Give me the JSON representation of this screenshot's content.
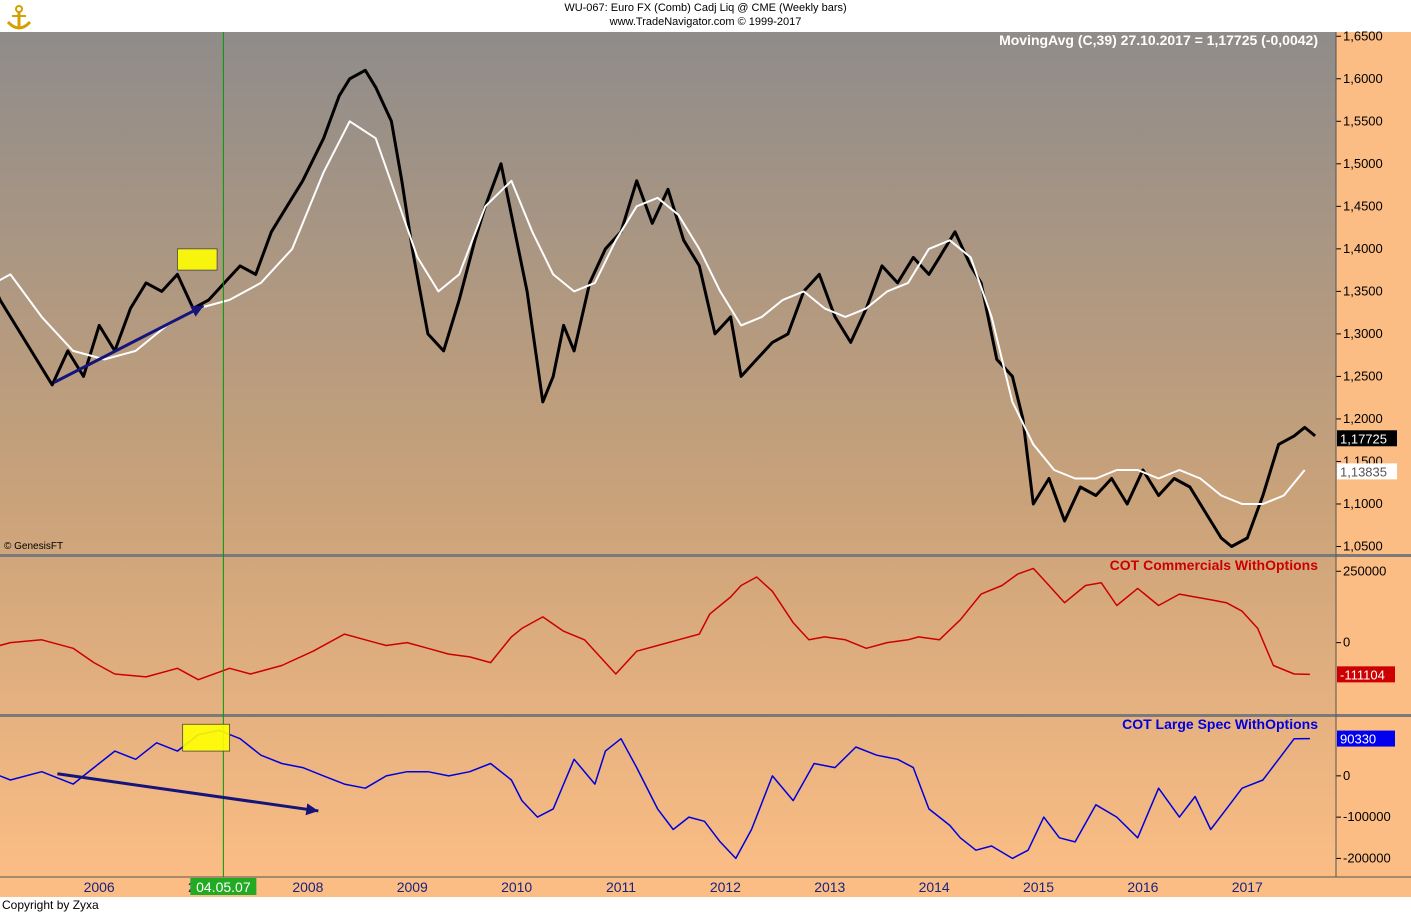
{
  "header": {
    "line1": "WU-067:  Euro FX (Comb) Cadj Liq @ CME  (Weekly bars)",
    "line2": "www.TradeNavigator.com © 1999-2017"
  },
  "footer": {
    "copyright": "Copyright by Zyxa",
    "watermark": "© GenesisFT"
  },
  "colors": {
    "bg_top": "#8f8c8a",
    "bg_mid": "#c9a27a",
    "bg_bottom": "#fbbd84",
    "price": "#000000",
    "ma": "#ffffff",
    "commercials": "#cc0000",
    "spec": "#0000dd",
    "marker": "#009900",
    "highlight": "#ffff00",
    "arrow": "#14147a"
  },
  "chart_data": [
    {
      "type": "line",
      "panel": "price",
      "series": [
        {
          "name": "Euro FX (Comb) Cadj Liq @ CME",
          "x": [
            2005.0,
            2005.2,
            2005.45,
            2005.7,
            2005.85,
            2006.0,
            2006.15,
            2006.3,
            2006.45,
            2006.6,
            2006.75,
            2006.9,
            2007.05,
            2007.2,
            2007.35,
            2007.5,
            2007.65,
            2007.8,
            2007.95,
            2008.1,
            2008.3,
            2008.45,
            2008.55,
            2008.7,
            2008.8,
            2008.95,
            2009.05,
            2009.15,
            2009.3,
            2009.45,
            2009.6,
            2009.75,
            2009.85,
            2010.0,
            2010.1,
            2010.25,
            2010.4,
            2010.5,
            2010.6,
            2010.7,
            2010.85,
            2011.0,
            2011.15,
            2011.3,
            2011.45,
            2011.6,
            2011.75,
            2011.9,
            2012.05,
            2012.2,
            2012.3,
            2012.45,
            2012.6,
            2012.75,
            2012.9,
            2013.05,
            2013.2,
            2013.35,
            2013.5,
            2013.65,
            2013.8,
            2013.95,
            2014.1,
            2014.2,
            2014.35,
            2014.5,
            2014.6,
            2014.75,
            2014.9,
            2015.0,
            2015.1,
            2015.25,
            2015.4,
            2015.55,
            2015.7,
            2015.85,
            2016.0,
            2016.15,
            2016.3,
            2016.45,
            2016.6,
            2016.75,
            2016.9,
            2017.0,
            2017.15,
            2017.3,
            2017.45,
            2017.6,
            2017.7,
            2017.8
          ],
          "y": [
            1.4,
            1.34,
            1.29,
            1.24,
            1.28,
            1.25,
            1.31,
            1.28,
            1.33,
            1.36,
            1.35,
            1.37,
            1.33,
            1.34,
            1.36,
            1.38,
            1.37,
            1.42,
            1.45,
            1.48,
            1.53,
            1.58,
            1.6,
            1.61,
            1.59,
            1.55,
            1.48,
            1.4,
            1.3,
            1.28,
            1.34,
            1.41,
            1.45,
            1.5,
            1.44,
            1.35,
            1.22,
            1.25,
            1.31,
            1.28,
            1.36,
            1.4,
            1.42,
            1.48,
            1.43,
            1.47,
            1.41,
            1.38,
            1.3,
            1.32,
            1.25,
            1.27,
            1.29,
            1.3,
            1.35,
            1.37,
            1.32,
            1.29,
            1.33,
            1.38,
            1.36,
            1.39,
            1.37,
            1.39,
            1.42,
            1.38,
            1.36,
            1.27,
            1.25,
            1.2,
            1.1,
            1.13,
            1.08,
            1.12,
            1.11,
            1.13,
            1.1,
            1.14,
            1.11,
            1.13,
            1.12,
            1.09,
            1.06,
            1.05,
            1.06,
            1.11,
            1.17,
            1.18,
            1.19,
            1.18
          ]
        },
        {
          "name": "MovingAvg (C,39)",
          "x": [
            2005.0,
            2005.3,
            2005.6,
            2005.9,
            2006.2,
            2006.5,
            2006.8,
            2007.1,
            2007.4,
            2007.7,
            2008.0,
            2008.3,
            2008.55,
            2008.8,
            2009.0,
            2009.2,
            2009.4,
            2009.6,
            2009.85,
            2010.1,
            2010.3,
            2010.5,
            2010.7,
            2010.9,
            2011.1,
            2011.3,
            2011.5,
            2011.7,
            2011.9,
            2012.1,
            2012.3,
            2012.5,
            2012.7,
            2012.9,
            2013.1,
            2013.3,
            2013.5,
            2013.7,
            2013.9,
            2014.1,
            2014.3,
            2014.5,
            2014.7,
            2014.9,
            2015.1,
            2015.3,
            2015.5,
            2015.7,
            2015.9,
            2016.1,
            2016.3,
            2016.5,
            2016.7,
            2016.9,
            2017.1,
            2017.3,
            2017.5,
            2017.7
          ],
          "y": [
            1.35,
            1.37,
            1.32,
            1.28,
            1.27,
            1.28,
            1.31,
            1.33,
            1.34,
            1.36,
            1.4,
            1.49,
            1.55,
            1.53,
            1.46,
            1.39,
            1.35,
            1.37,
            1.45,
            1.48,
            1.42,
            1.37,
            1.35,
            1.36,
            1.41,
            1.45,
            1.46,
            1.44,
            1.4,
            1.35,
            1.31,
            1.32,
            1.34,
            1.35,
            1.33,
            1.32,
            1.33,
            1.35,
            1.36,
            1.4,
            1.41,
            1.39,
            1.32,
            1.22,
            1.17,
            1.14,
            1.13,
            1.13,
            1.14,
            1.14,
            1.13,
            1.14,
            1.13,
            1.11,
            1.1,
            1.1,
            1.11,
            1.14
          ]
        }
      ],
      "title": "MovingAvg (C,39)   27.10.2017 = 1,17725 (-0,0042)",
      "ylim": [
        1.04,
        1.655
      ],
      "yticks": [
        "1,0500",
        "1,1000",
        "1,1500",
        "1,2000",
        "1,2500",
        "1,3000",
        "1,3500",
        "1,4000",
        "1,4500",
        "1,5000",
        "1,5500",
        "1,6000",
        "1,6500"
      ],
      "ytick_values": [
        1.05,
        1.1,
        1.15,
        1.2,
        1.25,
        1.3,
        1.35,
        1.4,
        1.45,
        1.5,
        1.55,
        1.6,
        1.65
      ],
      "last_price_label": "1,17725",
      "last_ma_label": "1,13835",
      "last_price": 1.17725,
      "last_ma": 1.13835
    },
    {
      "type": "line",
      "panel": "commercials",
      "title": "COT Commercials WithOptions",
      "series": [
        {
          "name": "COT Commercials WithOptions",
          "x": [
            2005.0,
            2005.3,
            2005.6,
            2005.9,
            2006.1,
            2006.3,
            2006.6,
            2006.9,
            2007.1,
            2007.4,
            2007.6,
            2007.9,
            2008.2,
            2008.5,
            2008.7,
            2008.9,
            2009.1,
            2009.3,
            2009.5,
            2009.7,
            2009.9,
            2010.1,
            2010.2,
            2010.4,
            2010.6,
            2010.8,
            2011.0,
            2011.1,
            2011.3,
            2011.5,
            2011.7,
            2011.9,
            2012.0,
            2012.2,
            2012.3,
            2012.45,
            2012.6,
            2012.8,
            2012.95,
            2013.1,
            2013.3,
            2013.5,
            2013.7,
            2013.9,
            2014.0,
            2014.2,
            2014.4,
            2014.6,
            2014.8,
            2014.95,
            2015.1,
            2015.2,
            2015.4,
            2015.6,
            2015.75,
            2015.9,
            2016.1,
            2016.3,
            2016.5,
            2016.65,
            2016.8,
            2016.95,
            2017.1,
            2017.25,
            2017.4,
            2017.6,
            2017.75
          ],
          "y": [
            -30000,
            0,
            10000,
            -20000,
            -70000,
            -110000,
            -120000,
            -90000,
            -130000,
            -90000,
            -110000,
            -80000,
            -30000,
            30000,
            10000,
            -10000,
            0,
            -20000,
            -40000,
            -50000,
            -70000,
            20000,
            50000,
            90000,
            40000,
            10000,
            -70000,
            -110000,
            -30000,
            -10000,
            10000,
            30000,
            100000,
            160000,
            200000,
            230000,
            180000,
            70000,
            10000,
            20000,
            10000,
            -20000,
            0,
            10000,
            20000,
            10000,
            80000,
            170000,
            200000,
            240000,
            260000,
            220000,
            140000,
            200000,
            210000,
            130000,
            190000,
            130000,
            170000,
            160000,
            150000,
            140000,
            110000,
            50000,
            -80000,
            -110000,
            -111104
          ]
        }
      ],
      "ylim": [
        -250000,
        300000
      ],
      "yticks": [
        "0",
        "250000"
      ],
      "ytick_values": [
        0,
        250000
      ],
      "last_label": "-111104",
      "last_value": -111104
    },
    {
      "type": "line",
      "panel": "spec",
      "title": "COT Large Spec WithOptions",
      "series": [
        {
          "name": "COT Large Spec WithOptions",
          "x": [
            2005.0,
            2005.3,
            2005.6,
            2005.9,
            2006.1,
            2006.3,
            2006.5,
            2006.7,
            2006.9,
            2007.1,
            2007.3,
            2007.5,
            2007.7,
            2007.9,
            2008.1,
            2008.3,
            2008.5,
            2008.7,
            2008.9,
            2009.1,
            2009.3,
            2009.5,
            2009.7,
            2009.9,
            2010.1,
            2010.2,
            2010.35,
            2010.5,
            2010.7,
            2010.9,
            2011.0,
            2011.15,
            2011.3,
            2011.5,
            2011.65,
            2011.8,
            2011.95,
            2012.1,
            2012.25,
            2012.4,
            2012.6,
            2012.8,
            2013.0,
            2013.2,
            2013.4,
            2013.6,
            2013.8,
            2013.95,
            2014.1,
            2014.3,
            2014.4,
            2014.55,
            2014.7,
            2014.9,
            2015.05,
            2015.2,
            2015.35,
            2015.5,
            2015.7,
            2015.9,
            2016.1,
            2016.3,
            2016.5,
            2016.65,
            2016.8,
            2016.95,
            2017.1,
            2017.3,
            2017.45,
            2017.6,
            2017.75
          ],
          "y": [
            20000,
            -10000,
            10000,
            -20000,
            20000,
            60000,
            40000,
            80000,
            60000,
            100000,
            110000,
            90000,
            50000,
            30000,
            20000,
            0,
            -20000,
            -30000,
            0,
            10000,
            10000,
            0,
            10000,
            30000,
            -10000,
            -60000,
            -100000,
            -80000,
            40000,
            -20000,
            60000,
            90000,
            20000,
            -80000,
            -130000,
            -100000,
            -110000,
            -160000,
            -200000,
            -130000,
            0,
            -60000,
            30000,
            20000,
            70000,
            50000,
            40000,
            20000,
            -80000,
            -120000,
            -150000,
            -180000,
            -170000,
            -200000,
            -180000,
            -100000,
            -150000,
            -160000,
            -70000,
            -100000,
            -150000,
            -30000,
            -100000,
            -50000,
            -130000,
            -80000,
            -30000,
            -10000,
            40000,
            90000,
            90330
          ]
        }
      ],
      "ylim": [
        -245000,
        145000
      ],
      "yticks": [
        "-200000",
        "-100000",
        "0"
      ],
      "ytick_values": [
        -200000,
        -100000,
        0
      ],
      "last_label": "90330",
      "last_value": 90330
    }
  ],
  "x_axis": {
    "labels": [
      "2006",
      "2007",
      "2008",
      "2009",
      "2010",
      "2011",
      "2012",
      "2013",
      "2014",
      "2015",
      "2016",
      "2017"
    ],
    "values": [
      2006,
      2007,
      2008,
      2009,
      2010,
      2011,
      2012,
      2013,
      2014,
      2015,
      2016,
      2017
    ],
    "marker_label": "04.05.07",
    "marker_x": 2007.34,
    "range": [
      2005.2,
      2018.0
    ]
  },
  "annotations": [
    {
      "type": "highlight",
      "panel": "price",
      "x": [
        2006.9,
        2007.28
      ],
      "y": [
        1.375,
        1.4
      ]
    },
    {
      "type": "highlight",
      "panel": "spec",
      "x": [
        2006.95,
        2007.4
      ],
      "y": [
        60000,
        125000
      ]
    },
    {
      "type": "arrow",
      "panel": "price",
      "from": [
        2005.72,
        1.243
      ],
      "to": [
        2007.15,
        1.333
      ]
    },
    {
      "type": "arrow",
      "panel": "spec",
      "from": [
        2005.75,
        5000
      ],
      "to": [
        2008.25,
        -85000
      ]
    }
  ]
}
